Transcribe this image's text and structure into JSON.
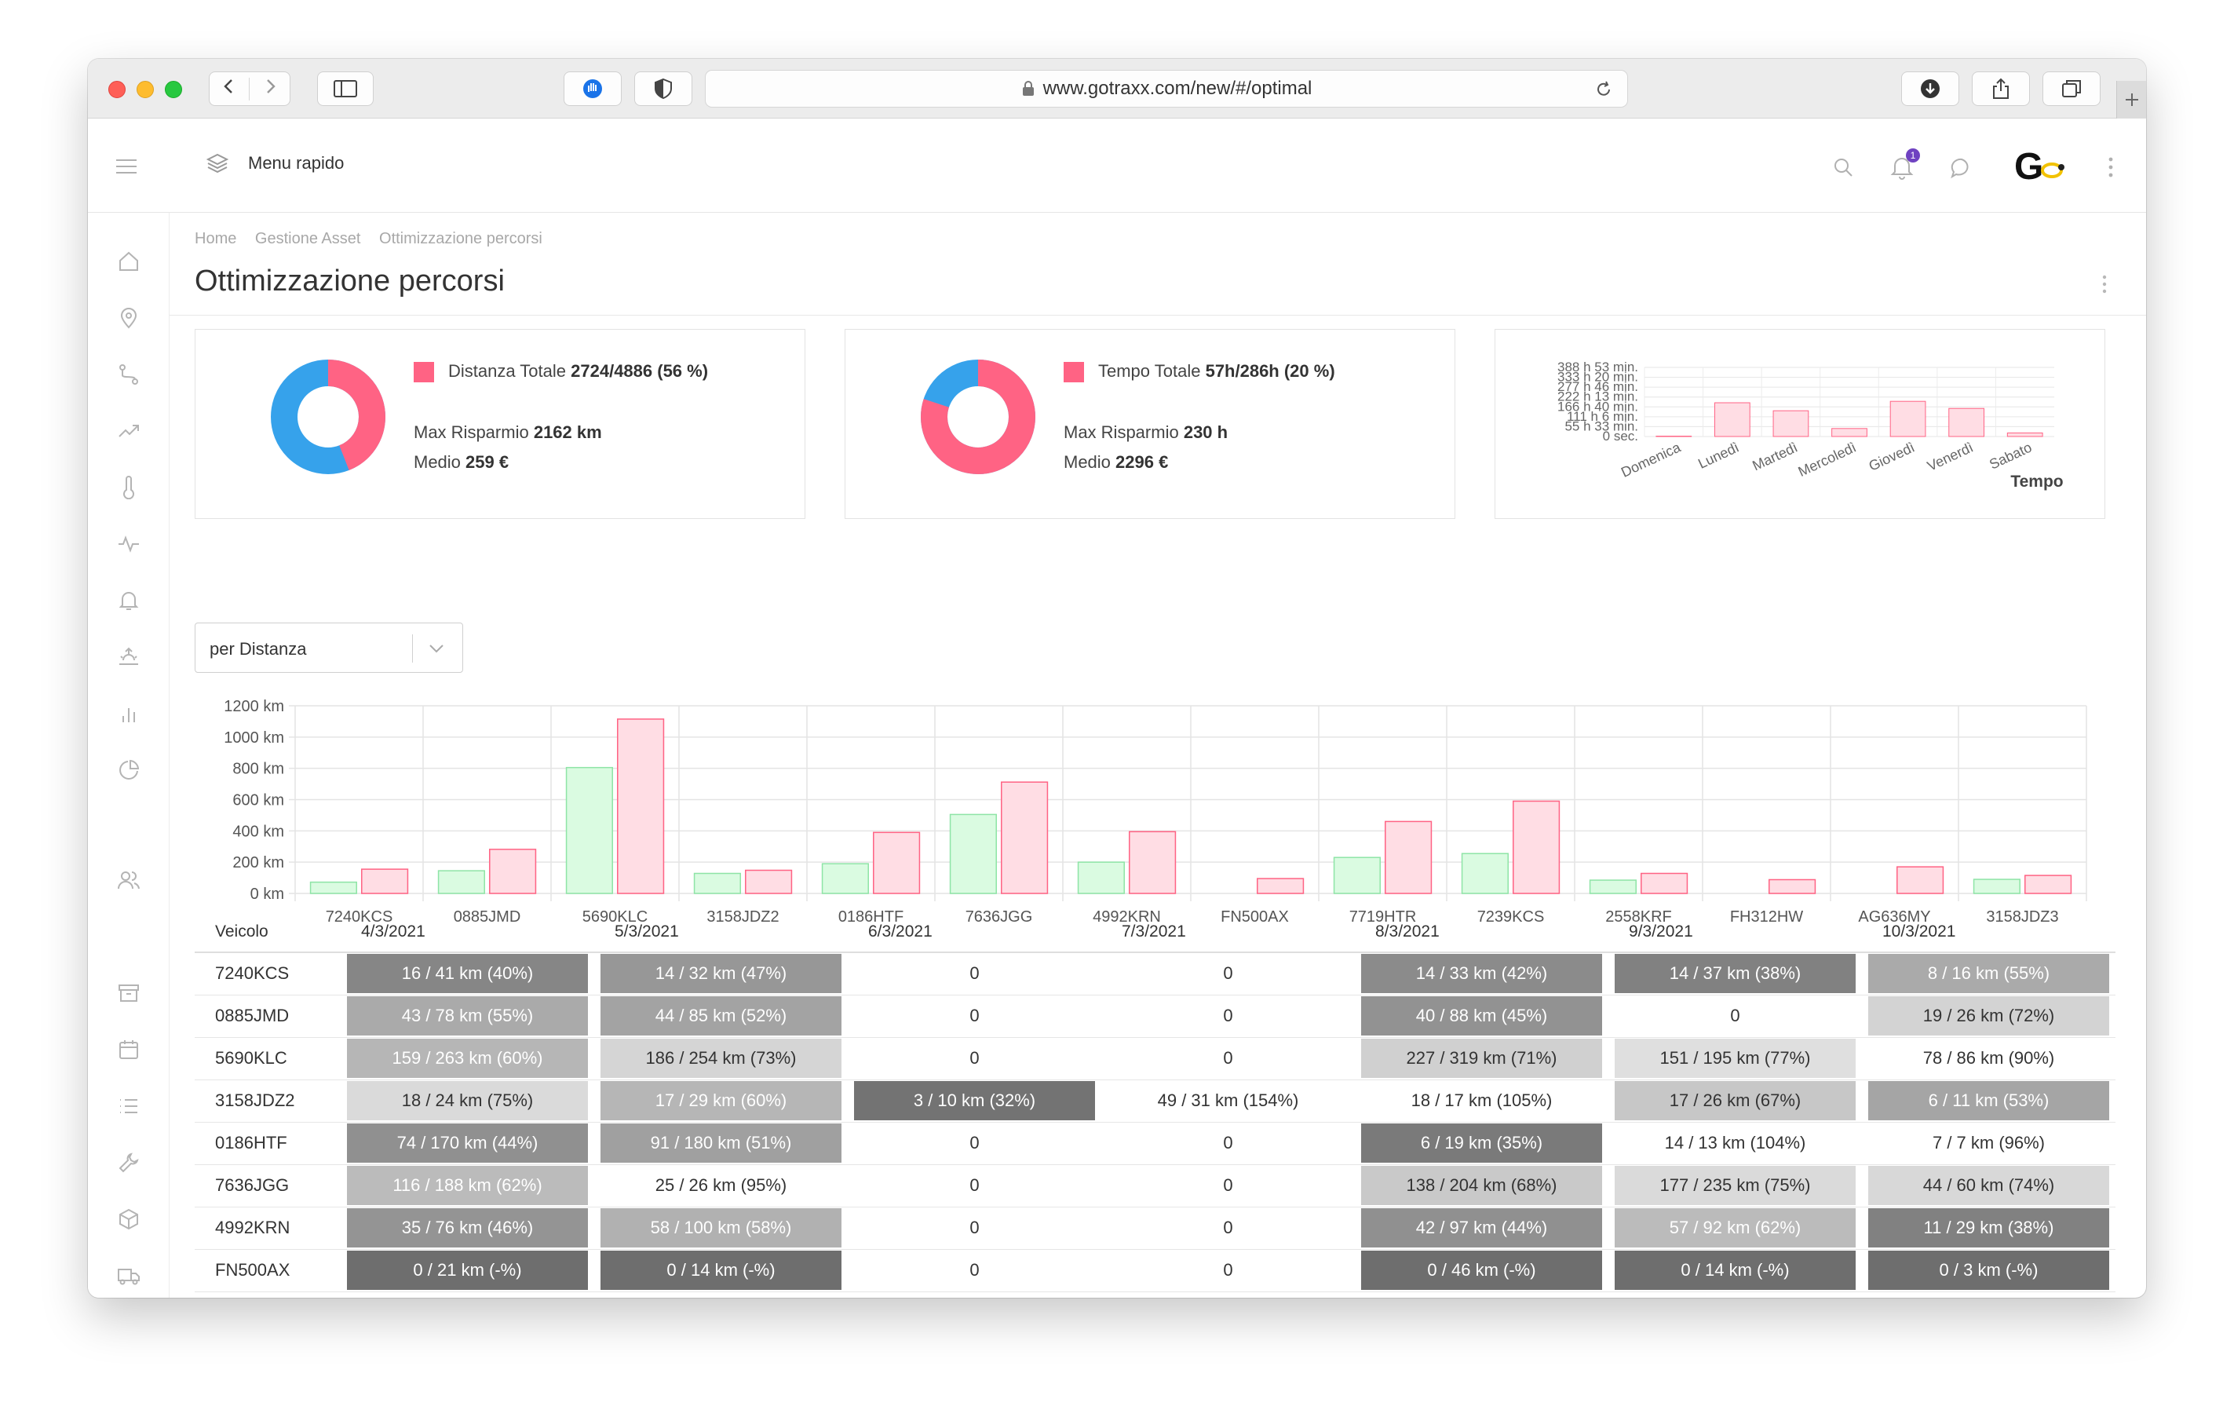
{
  "browser": {
    "url": "www.gotraxx.com/new/#/optimal"
  },
  "header": {
    "menu_rapido": "Menu rapido",
    "notification_count": "1",
    "logo_text": "G"
  },
  "breadcrumb": [
    "Home",
    "Gestione Asset",
    "Ottimizzazione percorsi"
  ],
  "page_title": "Ottimizzazione percorsi",
  "colors": {
    "pink": "#ff6384",
    "blue": "#36a2eb",
    "green_bar": "#dafbe1",
    "green_border": "#8ee4a6",
    "pink_bar": "#ffdde4"
  },
  "kpi_distance": {
    "label": "Distanza Totale",
    "value": "2724/4886 (56 %)",
    "saving_label": "Max Risparmio",
    "saving_value": "2162 km",
    "avg_label": "Medio",
    "avg_value": "259 €",
    "donut_fraction": 0.56
  },
  "kpi_time": {
    "label": "Tempo Totale",
    "value": "57h/286h (20 %)",
    "saving_label": "Max Risparmio",
    "saving_value": "230 h",
    "avg_label": "Medio",
    "avg_value": "2296 €",
    "donut_fraction": 0.2
  },
  "selector": {
    "value": "per Distanza"
  },
  "mini_chart": {
    "type": "bar",
    "title": "Tempo",
    "y_ticks": [
      "388 h 53 min.",
      "333 h 20 min.",
      "277 h 46 min.",
      "222 h 13 min.",
      "166 h 40 min.",
      "111 h 6 min.",
      "55 h 33 min.",
      "0 sec."
    ],
    "categories": [
      "Domenica",
      "Lunedì",
      "Martedì",
      "Mercoledì",
      "Giovedì",
      "Venerdì",
      "Sabato"
    ],
    "values_hours": [
      2,
      190,
      145,
      45,
      198,
      158,
      20
    ],
    "ylim": [
      0,
      388.9
    ]
  },
  "chart_data": {
    "type": "bar",
    "categories": [
      "7240KCS",
      "0885JMD",
      "5690KLC",
      "3158JDZ2",
      "0186HTF",
      "7636JGG",
      "4992KRN",
      "FN500AX",
      "7719HTR",
      "7239KCS",
      "2558KRF",
      "FH312HW",
      "AG636MY",
      "3158JDZ3"
    ],
    "y_ticks": [
      "1200 km",
      "1000 km",
      "800 km",
      "600 km",
      "400 km",
      "200 km",
      "0 km"
    ],
    "ylim": [
      0,
      1200
    ],
    "series": [
      {
        "values": [
          72,
          145,
          805,
          128,
          190,
          505,
          200,
          0,
          230,
          255,
          85,
          0,
          0,
          90
        ]
      },
      {
        "values": [
          155,
          282,
          1115,
          148,
          390,
          712,
          395,
          95,
          460,
          590,
          128,
          88,
          170,
          115
        ]
      }
    ],
    "grid": true
  },
  "table": {
    "columns": [
      "Veicolo",
      "4/3/2021",
      "5/3/2021",
      "6/3/2021",
      "7/3/2021",
      "8/3/2021",
      "9/3/2021",
      "10/3/2021"
    ],
    "rows": [
      {
        "vehicle": "7240KCS",
        "cells": [
          "16 / 41 km (40%)",
          "14 / 32 km (47%)",
          "0",
          "0",
          "14 / 33 km (42%)",
          "14 / 37 km (38%)",
          "8 / 16 km (55%)"
        ],
        "shade": [
          0.4,
          0.47,
          null,
          null,
          0.42,
          0.38,
          0.55
        ]
      },
      {
        "vehicle": "0885JMD",
        "cells": [
          "43 / 78 km (55%)",
          "44 / 85 km (52%)",
          "0",
          "0",
          "40 / 88 km (45%)",
          "0",
          "19 / 26 km (72%)"
        ],
        "shade": [
          0.55,
          0.52,
          null,
          null,
          0.45,
          null,
          0.72
        ]
      },
      {
        "vehicle": "5690KLC",
        "cells": [
          "159 / 263 km (60%)",
          "186 / 254 km (73%)",
          "0",
          "0",
          "227 / 319 km (71%)",
          "151 / 195 km (77%)",
          "78 / 86 km (90%)"
        ],
        "shade": [
          0.6,
          0.73,
          null,
          null,
          0.71,
          0.77,
          null
        ]
      },
      {
        "vehicle": "3158JDZ2",
        "cells": [
          "18 / 24 km (75%)",
          "17 / 29 km (60%)",
          "3 / 10 km (32%)",
          "49 / 31 km (154%)",
          "18 / 17 km (105%)",
          "17 / 26 km (67%)",
          "6 / 11 km (53%)"
        ],
        "shade": [
          0.75,
          0.6,
          0.32,
          null,
          null,
          0.67,
          0.53
        ]
      },
      {
        "vehicle": "0186HTF",
        "cells": [
          "74 / 170 km (44%)",
          "91 / 180 km (51%)",
          "0",
          "0",
          "6 / 19 km (35%)",
          "14 / 13 km (104%)",
          "7 / 7 km (96%)"
        ],
        "shade": [
          0.44,
          0.51,
          null,
          null,
          0.35,
          null,
          null
        ]
      },
      {
        "vehicle": "7636JGG",
        "cells": [
          "116 / 188 km (62%)",
          "25 / 26 km (95%)",
          "0",
          "0",
          "138 / 204 km (68%)",
          "177 / 235 km (75%)",
          "44 / 60 km (74%)"
        ],
        "shade": [
          0.62,
          null,
          null,
          null,
          0.68,
          0.75,
          0.74
        ]
      },
      {
        "vehicle": "4992KRN",
        "cells": [
          "35 / 76 km (46%)",
          "58 / 100 km (58%)",
          "0",
          "0",
          "42 / 97 km (44%)",
          "57 / 92 km (62%)",
          "11 / 29 km (38%)"
        ],
        "shade": [
          0.46,
          0.58,
          null,
          null,
          0.44,
          0.62,
          0.38
        ]
      },
      {
        "vehicle": "FN500AX",
        "cells": [
          "0 / 21 km (-%)",
          "0 / 14 km (-%)",
          "0",
          "0",
          "0 / 46 km (-%)",
          "0 / 14 km (-%)",
          "0 / 3 km (-%)"
        ],
        "shade": [
          0.3,
          0.3,
          null,
          null,
          0.3,
          0.3,
          0.3
        ]
      }
    ]
  }
}
